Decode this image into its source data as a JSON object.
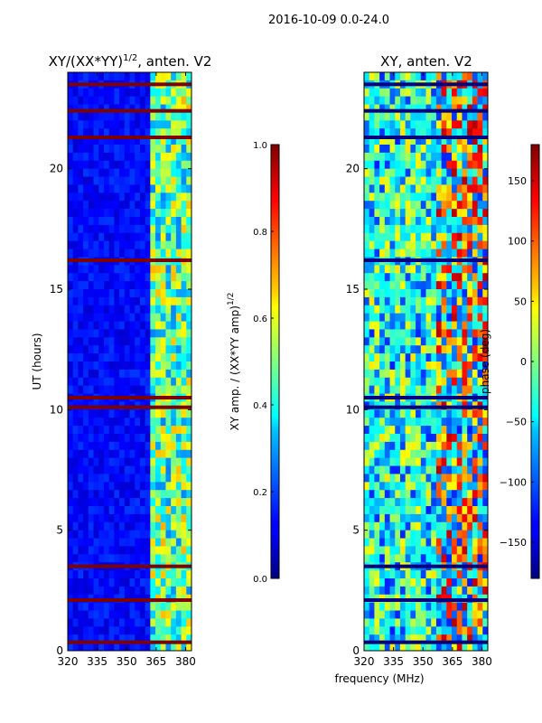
{
  "figure": {
    "suptitle": "2016-10-09 0.0-24.0",
    "xlabel_common": "frequency (MHz)",
    "ylabel_common": "UT (hours)"
  },
  "chart_data": [
    {
      "type": "heatmap",
      "title": "XY/(XX*YY)",
      "title_exponent": "1/2",
      "title_suffix": ", anten. V2",
      "xlabel": "frequency (MHz)",
      "ylabel": "UT (hours)",
      "xlim": [
        320,
        383
      ],
      "ylim": [
        0,
        24
      ],
      "xticks": [
        320,
        335,
        350,
        365,
        380
      ],
      "yticks": [
        0,
        5,
        10,
        15,
        20
      ],
      "colorbar": {
        "label": "XY amp. / (XX*YY amp)",
        "label_exponent": "1/2",
        "range": [
          0.0,
          1.0
        ],
        "ticks": [
          "0.0",
          "0.2",
          "0.4",
          "0.6",
          "0.8",
          "1.0"
        ],
        "colormap": "jet"
      }
    },
    {
      "type": "heatmap",
      "title": "XY, anten. V2",
      "xlabel": "frequency (MHz)",
      "ylabel": "UT (hours)",
      "xlim": [
        320,
        383
      ],
      "ylim": [
        0,
        24
      ],
      "xticks": [
        320,
        335,
        350,
        365,
        380
      ],
      "yticks": [
        0,
        5,
        10,
        15,
        20
      ],
      "colorbar": {
        "label": "phase (deg)",
        "range": [
          -180,
          180
        ],
        "ticks": [
          "−150",
          "−100",
          "−50",
          "0",
          "50",
          "100",
          "150"
        ],
        "colormap": "jet"
      }
    }
  ]
}
